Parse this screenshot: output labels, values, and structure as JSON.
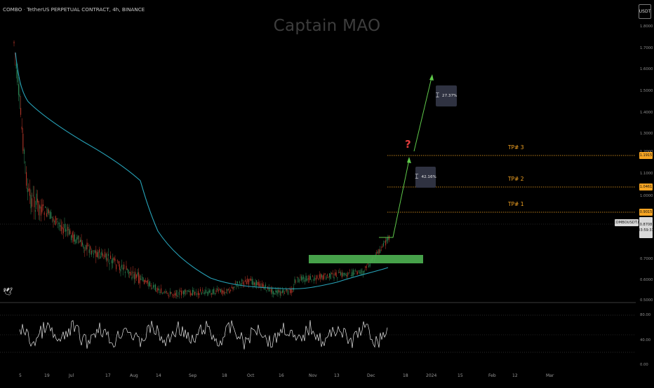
{
  "header": {
    "symbol": "COMBO",
    "description": "TetherUS PERPETUAL CONTRACT, 4h, BINANCE",
    "watermark": "Captain MAO",
    "currency_button": "USDT"
  },
  "price_scale": {
    "labels": [
      "1.8000",
      "1.7000",
      "1.6000",
      "1.5000",
      "1.4000",
      "1.3000",
      "1.2000",
      "1.1000",
      "1.0000",
      "0.9000",
      "0.8000",
      "0.7000",
      "0.6000",
      "0.5000"
    ]
  },
  "indicator_scale": {
    "labels": [
      "80.00",
      "40.00",
      "0.00"
    ]
  },
  "time_axis": {
    "labels": [
      "5",
      "19",
      "Jul",
      "17",
      "Aug",
      "14",
      "Sep",
      "18",
      "Oct",
      "16",
      "Nov",
      "13",
      "Dec",
      "18",
      "2024",
      "15",
      "Feb",
      "12",
      "Mar"
    ]
  },
  "targets": [
    {
      "label": "TP# 3",
      "price": "1.1915",
      "color": "#f5a423"
    },
    {
      "label": "TP# 2",
      "price": "1.0461",
      "color": "#f5a423"
    },
    {
      "label": "TP# 1",
      "price": "0.9015",
      "color": "#f5a423"
    }
  ],
  "current": {
    "symbol_tag": "COMBOUSDT.P",
    "price": "0.8708",
    "countdown": "03:59:31"
  },
  "annotations": {
    "question_mark": "?",
    "measure_upper": "27.37%",
    "measure_lower": "42.16%",
    "logo": "🕊"
  },
  "colors": {
    "ema": "#27a3b9",
    "support_zone": "#4caf50",
    "arrow": "#5fc94a",
    "tp_line": "#f5a423",
    "candle_up": "#2e8b57",
    "candle_down": "#c0392b"
  }
}
